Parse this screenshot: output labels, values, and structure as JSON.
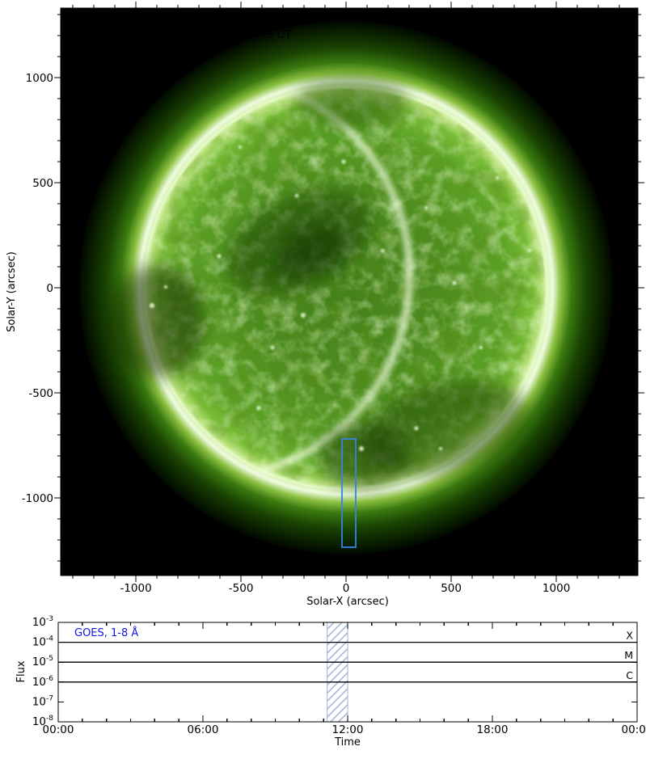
{
  "figure": {
    "eit_overlay_label": "EIT 0195, 22-Mar-2008, 12:00:09 UT",
    "goes_panel_label": "GOES, 1-8 Å",
    "colors": {
      "annotation_blue": "#1414e6",
      "roi_box_blue": "#3583e6",
      "hatch_blue": "#9fb3d8",
      "frame_black": "#000000",
      "sun_palette_green": "#4e8d1e",
      "background": "#ffffff"
    }
  },
  "chart_data": [
    {
      "type": "heatmap",
      "title": "EIT 0195, 22-Mar-2008, 12:00:09 UT",
      "xlabel": "Solar-X (arcsec)",
      "ylabel": "Solar-Y (arcsec)",
      "xlim": [
        -1358,
        1388
      ],
      "ylim": [
        -1369,
        1331
      ],
      "x_major_ticks": [
        -1000,
        -500,
        0,
        500,
        1000
      ],
      "y_major_ticks": [
        1000,
        500,
        0,
        -500,
        -1000
      ],
      "minor_tick_step_arcsec": 100,
      "grid": false,
      "solar_disk": {
        "center_arcsec": [
          0,
          0
        ],
        "radius_arcsec": 962,
        "palette": "EIT 195 green, bright limb, dark coronal holes"
      },
      "roi_box_arcsec": {
        "x_min": -19,
        "x_max": 46,
        "y_min": -1235,
        "y_max": -719
      }
    },
    {
      "type": "line",
      "label": "GOES, 1-8 Å",
      "xlabel": "Time",
      "ylabel": "Flux",
      "xlim_hours": [
        0,
        24
      ],
      "x_major_tick_hours": [
        0,
        6,
        12,
        18,
        24
      ],
      "x_tick_labels": [
        "00:00",
        "06:00",
        "12:00",
        "18:00",
        "00:00"
      ],
      "x_minor_tick_step_hours": 1,
      "y_exponents": [
        -3,
        -4,
        -5,
        -6,
        -7,
        -8
      ],
      "ylim": [
        "1e-8",
        "1e-3"
      ],
      "flare_class_lines": [
        {
          "label": "X",
          "exponent": -4
        },
        {
          "label": "M",
          "exponent": -5
        },
        {
          "label": "C",
          "exponent": -6
        }
      ],
      "hatched_band_hours": [
        11.15,
        12
      ],
      "legend_position": "top-left inside",
      "series": []
    }
  ]
}
